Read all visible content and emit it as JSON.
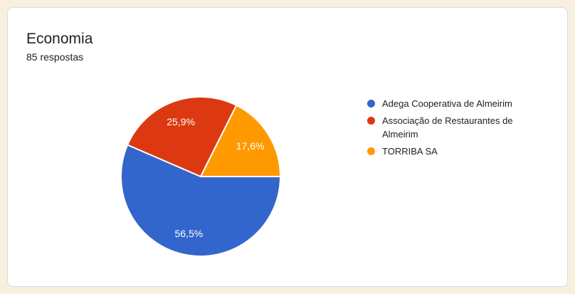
{
  "page": {
    "background_color": "#f8f0de"
  },
  "card": {
    "title": "Economia",
    "subtitle": "85 respostas",
    "background_color": "#ffffff",
    "border_color": "#dadce0"
  },
  "chart_data": {
    "type": "pie",
    "title": "Economia",
    "subtitle": "85 respostas",
    "categories": [
      "Adega Cooperativa de Almeirim",
      "Associação de Restaurantes de Almeirim",
      "TORRIBA SA"
    ],
    "values": [
      56.5,
      25.9,
      17.6
    ],
    "slice_labels": [
      "56,5%",
      "25,9%",
      "17,6%"
    ],
    "colors": [
      "#3366CC",
      "#DC3912",
      "#FF9900"
    ],
    "slice_label_color": "#ffffff",
    "slice_border_color": "#ffffff",
    "legend_position": "right",
    "start_angle_deg": 0,
    "direction": "clockwise"
  }
}
